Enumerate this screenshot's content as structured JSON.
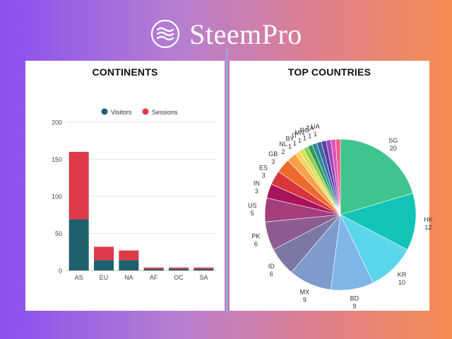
{
  "brand": {
    "name": "SteemPro"
  },
  "colors": {
    "visitors": "#1f5f6e",
    "sessions": "#dc3a48"
  },
  "chart_data": [
    {
      "type": "bar",
      "stacked": true,
      "title": "CONTINENTS",
      "categories": [
        "AS",
        "EU",
        "NA",
        "AF",
        "OC",
        "SA"
      ],
      "series": [
        {
          "name": "Visitors",
          "values": [
            69,
            14,
            14,
            2,
            2,
            2
          ]
        },
        {
          "name": "Sessions",
          "values": [
            91,
            18,
            13,
            2,
            2,
            2
          ]
        }
      ],
      "ylim": [
        0,
        200
      ],
      "yticks": [
        0,
        50,
        100,
        150,
        200
      ],
      "grid": true,
      "legend": "top-center"
    },
    {
      "type": "pie",
      "title": "TOP COUNTRIES",
      "slices": [
        {
          "label": "SG",
          "value": 20,
          "color": "#3ec48c"
        },
        {
          "label": "HK",
          "value": 12,
          "color": "#12c3b7"
        },
        {
          "label": "KR",
          "value": 10,
          "color": "#5cd6ea"
        },
        {
          "label": "BD",
          "value": 9,
          "color": "#7fb6ea"
        },
        {
          "label": "MX",
          "value": 9,
          "color": "#7e9bcc"
        },
        {
          "label": "ID",
          "value": 6,
          "color": "#7a78a4"
        },
        {
          "label": "PK",
          "value": 6,
          "color": "#8e5c93"
        },
        {
          "label": "US",
          "value": 5,
          "color": "#a43f7c"
        },
        {
          "label": "IN",
          "value": 3,
          "color": "#a8135b"
        },
        {
          "label": "ES",
          "value": 3,
          "color": "#d9353d"
        },
        {
          "label": "GB",
          "value": 3,
          "color": "#ee6a2c"
        },
        {
          "label": "NL",
          "value": 2,
          "color": "#f5a04a"
        },
        {
          "label": "BY",
          "value": 1,
          "color": "#f9d25e"
        },
        {
          "label": "IT",
          "value": 1,
          "color": "#d8e05a"
        },
        {
          "label": "MN",
          "value": 1,
          "color": "#8fcf4e"
        },
        {
          "label": "RO",
          "value": 1,
          "color": "#2f9c59"
        },
        {
          "label": "ZA",
          "value": 1,
          "color": "#2a8d96"
        },
        {
          "label": "UA",
          "value": 1,
          "color": "#3b64a8"
        },
        {
          "label": "",
          "value": 1,
          "color": "#5b3e9a"
        },
        {
          "label": "",
          "value": 1,
          "color": "#9b46c2"
        },
        {
          "label": "",
          "value": 1,
          "color": "#dd57b4"
        },
        {
          "label": "",
          "value": 1,
          "color": "#f25a8c"
        }
      ]
    }
  ]
}
